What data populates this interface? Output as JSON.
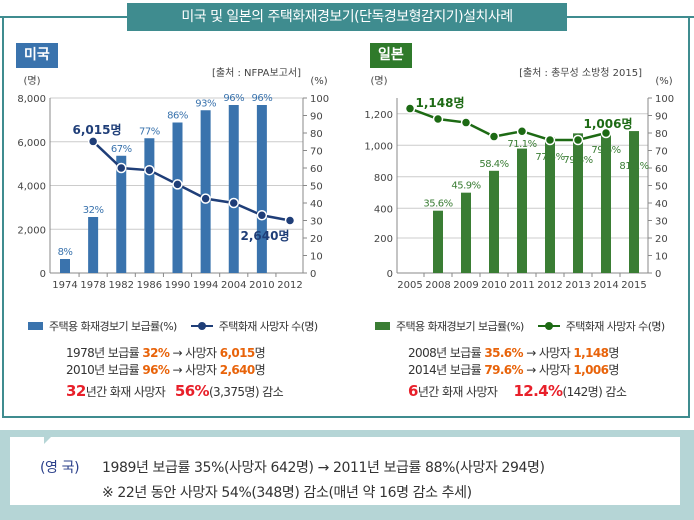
{
  "title": "미국 및 일본의 주택화재경보기(단독경보형감지기)설치사례",
  "chart_data": [
    {
      "type": "bar+line",
      "name": "미국",
      "source": "[출처 : NFPA보고서]",
      "yunit_left": "(명)",
      "yunit_right": "(%)",
      "categories": [
        "1974",
        "1978",
        "1982",
        "1986",
        "1990",
        "1994",
        "2004",
        "2010",
        "2012"
      ],
      "left_ticks": [
        "8,000",
        "6,000",
        "4,000",
        "2,000",
        "0"
      ],
      "left_range": [
        0,
        8000
      ],
      "right_ticks": [
        "100",
        "90",
        "80",
        "70",
        "60",
        "50",
        "40",
        "30",
        "20",
        "10",
        "0"
      ],
      "right_range": [
        0,
        100
      ],
      "series": [
        {
          "name": "주택용 화재경보기 보급률(%)",
          "type": "bar",
          "values": [
            8,
            32,
            67,
            77,
            86,
            93,
            96,
            96,
            null
          ],
          "labels": [
            "8%",
            "32%",
            "67%",
            "77%",
            "86%",
            "93%",
            "96%",
            "96%",
            ""
          ]
        },
        {
          "name": "주택화재 사망자 수(명)",
          "type": "line",
          "values": [
            null,
            6015,
            4800,
            4700,
            4050,
            3400,
            3200,
            2640,
            2400
          ]
        }
      ],
      "annotations": [
        "6,015명",
        "2,640명"
      ],
      "bar_color": "#3a73ad",
      "line_color": "#1f3e78",
      "label_color": "#3a73ad",
      "tag_color": "#3a73ad"
    },
    {
      "type": "bar+line",
      "name": "일본",
      "source": "[출처 : 총무성 소방청 2015]",
      "yunit_left": "(명)",
      "yunit_right": "(%)",
      "categories": [
        "2005",
        "2008",
        "2009",
        "2010",
        "2011",
        "2012",
        "2013",
        "2014",
        "2015"
      ],
      "left_ticks": [
        "1,200",
        "1,000",
        "800",
        "400",
        "200",
        "0"
      ],
      "right_ticks": [
        "100",
        "90",
        "80",
        "70",
        "60",
        "50",
        "40",
        "30",
        "20",
        "10",
        "0"
      ],
      "right_range": [
        0,
        100
      ],
      "series": [
        {
          "name": "주택용 화재경보기 보급률(%)",
          "type": "bar",
          "values": [
            null,
            35.6,
            45.9,
            58.4,
            71.1,
            77.5,
            79.8,
            79.6,
            81.1
          ],
          "labels": [
            "",
            "35.6%",
            "45.9%",
            "58.4%",
            "71.1%",
            "77.5%",
            "79.8%",
            "79.6%",
            "81.1%"
          ]
        },
        {
          "name": "주택화재 사망자 수(명)",
          "type": "line",
          "values": [
            1254,
            1148,
            1112,
            970,
            1024,
            935,
            935,
            1006,
            null
          ]
        }
      ],
      "annotations": [
        "1,148명",
        "1,006명"
      ],
      "bar_color": "#3a7d34",
      "line_color": "#1d6a14",
      "label_color": "#3a7d34",
      "tag_color": "#2f7a2b"
    }
  ],
  "legend": {
    "bar": "주택용 화재경보기 보급률(%)",
    "line": "주택화재 사망자 수(명)"
  },
  "us_summary": {
    "l1a": "1978년 보급률 ",
    "l1b": "32%",
    "l1c": " → 사망자 ",
    "l1d": "6,015",
    "l1e": "명",
    "l2a": "2010년 보급률 ",
    "l2b": "96%",
    "l2c": " → 사망자 ",
    "l2d": "2,640",
    "l2e": "명",
    "l3a": "32",
    "l3b": "년간 화재 사망자 ",
    "l3c": "56%",
    "l3d": "(3,375명) 감소"
  },
  "jp_summary": {
    "l1a": "2008년 보급률 ",
    "l1b": "35.6%",
    "l1c": " → 사망자 ",
    "l1d": "1,148",
    "l1e": "명",
    "l2a": "2014년 보급률 ",
    "l2b": "79.6%",
    "l2c": " → 사망자 ",
    "l2d": "1,006",
    "l2e": "명",
    "l3a": "6",
    "l3b": "년간 화재 사망자 ",
    "l3c": "12.4%",
    "l3d": "(142명) 감소"
  },
  "uk": {
    "label": "(영 국)",
    "line1": "1989년 보급률 35%(사망자 642명) → 2011년 보급률 88%(사망자 294명)",
    "line2": "※ 22년 동안 사망자 54%(348명) 감소(매년 약 16명 감소 추세)"
  }
}
